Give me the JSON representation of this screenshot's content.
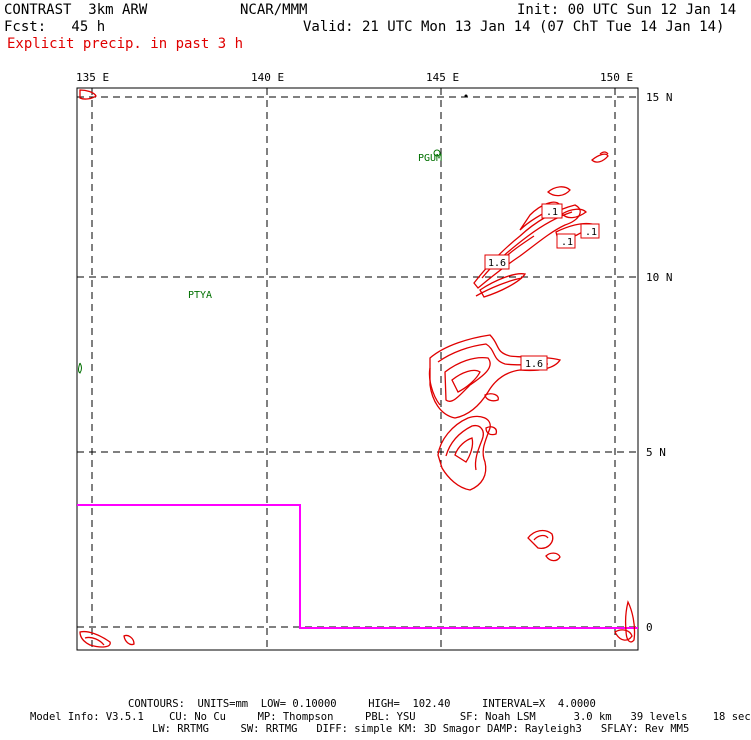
{
  "header": {
    "model_title": "CONTRAST  3km ARW",
    "org": "NCAR/MMM",
    "init": "Init: 00 UTC Sun 12 Jan 14",
    "fcst": "Fcst:   45 h",
    "valid": "Valid: 21 UTC Mon 13 Jan 14 (07 ChT Tue 14 Jan 14)",
    "field": "Explicit precip. in past 3 h"
  },
  "axes": {
    "lon_labels": [
      "135 E",
      "140 E",
      "145 E",
      "150 E"
    ],
    "lat_labels": [
      "15 N",
      "10 N",
      "5 N",
      "0"
    ]
  },
  "stations": [
    "PGUM",
    "PTYA"
  ],
  "contour_labels": [
    ".1",
    ".1",
    ".1",
    "1.6",
    "1.6"
  ],
  "footer": {
    "contours": "CONTOURS:  UNITS=mm  LOW= 0.10000     HIGH=  102.40     INTERVAL=X  4.0000",
    "model_info_1": "Model Info: V3.5.1    CU: No Cu     MP: Thompson     PBL: YSU       SF: Noah LSM      3.0 km   39 levels    18 sec",
    "model_info_2": "LW: RRTMG     SW: RRTMG   DIFF: simple KM: 3D Smagor DAMP: Rayleigh3   SFLAY: Rev MM5"
  },
  "colors": {
    "precip_contour": "#e00000",
    "station_label": "#007000",
    "domain_boundary": "#ff00ff",
    "grid": "#000000"
  }
}
